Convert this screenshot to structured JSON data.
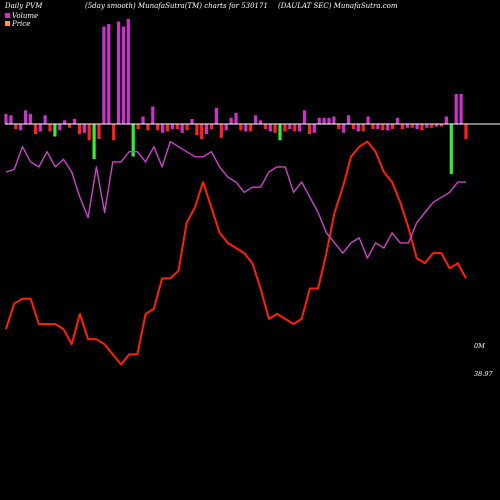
{
  "header": {
    "left": "Daily PVM",
    "center": "(5day smooth) MunafaSutra(TM) charts for 530171",
    "right": "(DAULAT SEC) MunafaSutra.com"
  },
  "legend": [
    {
      "label": "Volume",
      "color": "#cc33cc"
    },
    {
      "label": "Price",
      "color": "#ff9933"
    }
  ],
  "colors": {
    "background": "#000000",
    "baseline": "#ffffff",
    "up_bar": "#cc33cc",
    "down_bar": "#ff2222",
    "high_down_bar": "#33ee33",
    "price_line": "#ff2200",
    "volume_line": "#cc44cc"
  },
  "chart_data": {
    "type": "bar+line",
    "title": "(5day smooth) MunafaSutra(TM) charts for 530171",
    "series": [
      {
        "name": "Volume",
        "kind": "bars",
        "values": [
          8,
          7,
          -4,
          -5,
          11,
          8,
          -8,
          -6,
          7,
          -6,
          -10,
          -5,
          3,
          -3,
          4,
          -8,
          -7,
          -13,
          -28,
          -12,
          78,
          80,
          -13,
          82,
          78,
          84,
          -26,
          -4,
          6,
          -5,
          14,
          -5,
          -7,
          -6,
          -4,
          -4,
          -7,
          -5,
          4,
          -9,
          -12,
          -8,
          -4,
          13,
          -11,
          -5,
          5,
          9,
          -5,
          -6,
          -6,
          7,
          3,
          -4,
          -6,
          -7,
          -13,
          -6,
          -4,
          -6,
          -6,
          11,
          -8,
          -7,
          5,
          5,
          5,
          6,
          -4,
          -7,
          7,
          -4,
          -6,
          -6,
          6,
          -4,
          -4,
          -5,
          -5,
          -4,
          5,
          -4,
          -3,
          -3,
          -4,
          -5,
          -3,
          -3,
          -2,
          -2,
          6,
          -40,
          24,
          24,
          -12
        ],
        "colors": [
          "#cc33cc",
          "#cc33cc",
          "#ff2222",
          "#cc33cc",
          "#cc33cc",
          "#cc33cc",
          "#ff2222",
          "#cc33cc",
          "#cc33cc",
          "#ff2222",
          "#33ee33",
          "#cc33cc",
          "#cc33cc",
          "#ff2222",
          "#cc33cc",
          "#ff2222",
          "#cc33cc",
          "#ff2222",
          "#33ee33",
          "#ff2222",
          "#cc33cc",
          "#cc33cc",
          "#ff2222",
          "#cc33cc",
          "#cc33cc",
          "#cc33cc",
          "#33ee33",
          "#ff2222",
          "#cc33cc",
          "#ff2222",
          "#cc33cc",
          "#ff2222",
          "#cc33cc",
          "#ff2222",
          "#cc33cc",
          "#ff2222",
          "#cc33cc",
          "#ff2222",
          "#cc33cc",
          "#ff2222",
          "#ff2222",
          "#cc33cc",
          "#ff2222",
          "#cc33cc",
          "#ff2222",
          "#cc33cc",
          "#cc33cc",
          "#cc33cc",
          "#ff2222",
          "#cc33cc",
          "#ff2222",
          "#cc33cc",
          "#cc33cc",
          "#ff2222",
          "#cc33cc",
          "#ff2222",
          "#33ee33",
          "#ff2222",
          "#cc33cc",
          "#ff2222",
          "#cc33cc",
          "#cc33cc",
          "#ff2222",
          "#cc33cc",
          "#cc33cc",
          "#cc33cc",
          "#cc33cc",
          "#cc33cc",
          "#ff2222",
          "#cc33cc",
          "#cc33cc",
          "#ff2222",
          "#cc33cc",
          "#ff2222",
          "#cc33cc",
          "#ff2222",
          "#cc33cc",
          "#ff2222",
          "#cc33cc",
          "#ff2222",
          "#cc33cc",
          "#ff2222",
          "#cc33cc",
          "#ff2222",
          "#cc33cc",
          "#ff2222",
          "#cc33cc",
          "#ff2222",
          "#cc33cc",
          "#ff2222",
          "#cc33cc",
          "#33ee33",
          "#cc33cc",
          "#cc33cc",
          "#ff2222"
        ]
      },
      {
        "name": "Price",
        "kind": "line",
        "values": [
          28,
          38,
          40,
          40,
          30,
          30,
          30,
          28,
          22,
          34,
          24,
          24,
          22,
          18,
          14,
          18,
          18,
          34,
          36,
          48,
          48,
          51,
          70,
          76,
          86,
          76,
          66,
          62,
          60,
          58,
          54,
          44,
          32,
          34,
          32,
          30,
          32,
          44,
          44,
          58,
          74,
          84,
          96,
          100,
          102,
          98,
          90,
          86,
          78,
          68,
          56,
          54,
          58,
          58,
          52,
          54,
          48
        ]
      },
      {
        "name": "Volume (smoothed)",
        "kind": "line",
        "values": [
          90,
          91,
          100,
          94,
          92,
          98,
          92,
          95,
          90,
          80,
          72,
          92,
          74,
          94,
          94,
          98,
          98,
          94,
          100,
          92,
          102,
          100,
          98,
          96,
          96,
          98,
          92,
          88,
          86,
          82,
          84,
          84,
          90,
          92,
          92,
          82,
          86,
          80,
          74,
          66,
          62,
          58,
          62,
          64,
          56,
          62,
          60,
          66,
          62,
          62,
          70,
          74,
          78,
          80,
          82,
          86,
          86
        ]
      }
    ],
    "annotations": [
      {
        "text": "0M",
        "series": "Volume (smoothed)"
      },
      {
        "text": "38.97",
        "series": "Price"
      }
    ]
  }
}
